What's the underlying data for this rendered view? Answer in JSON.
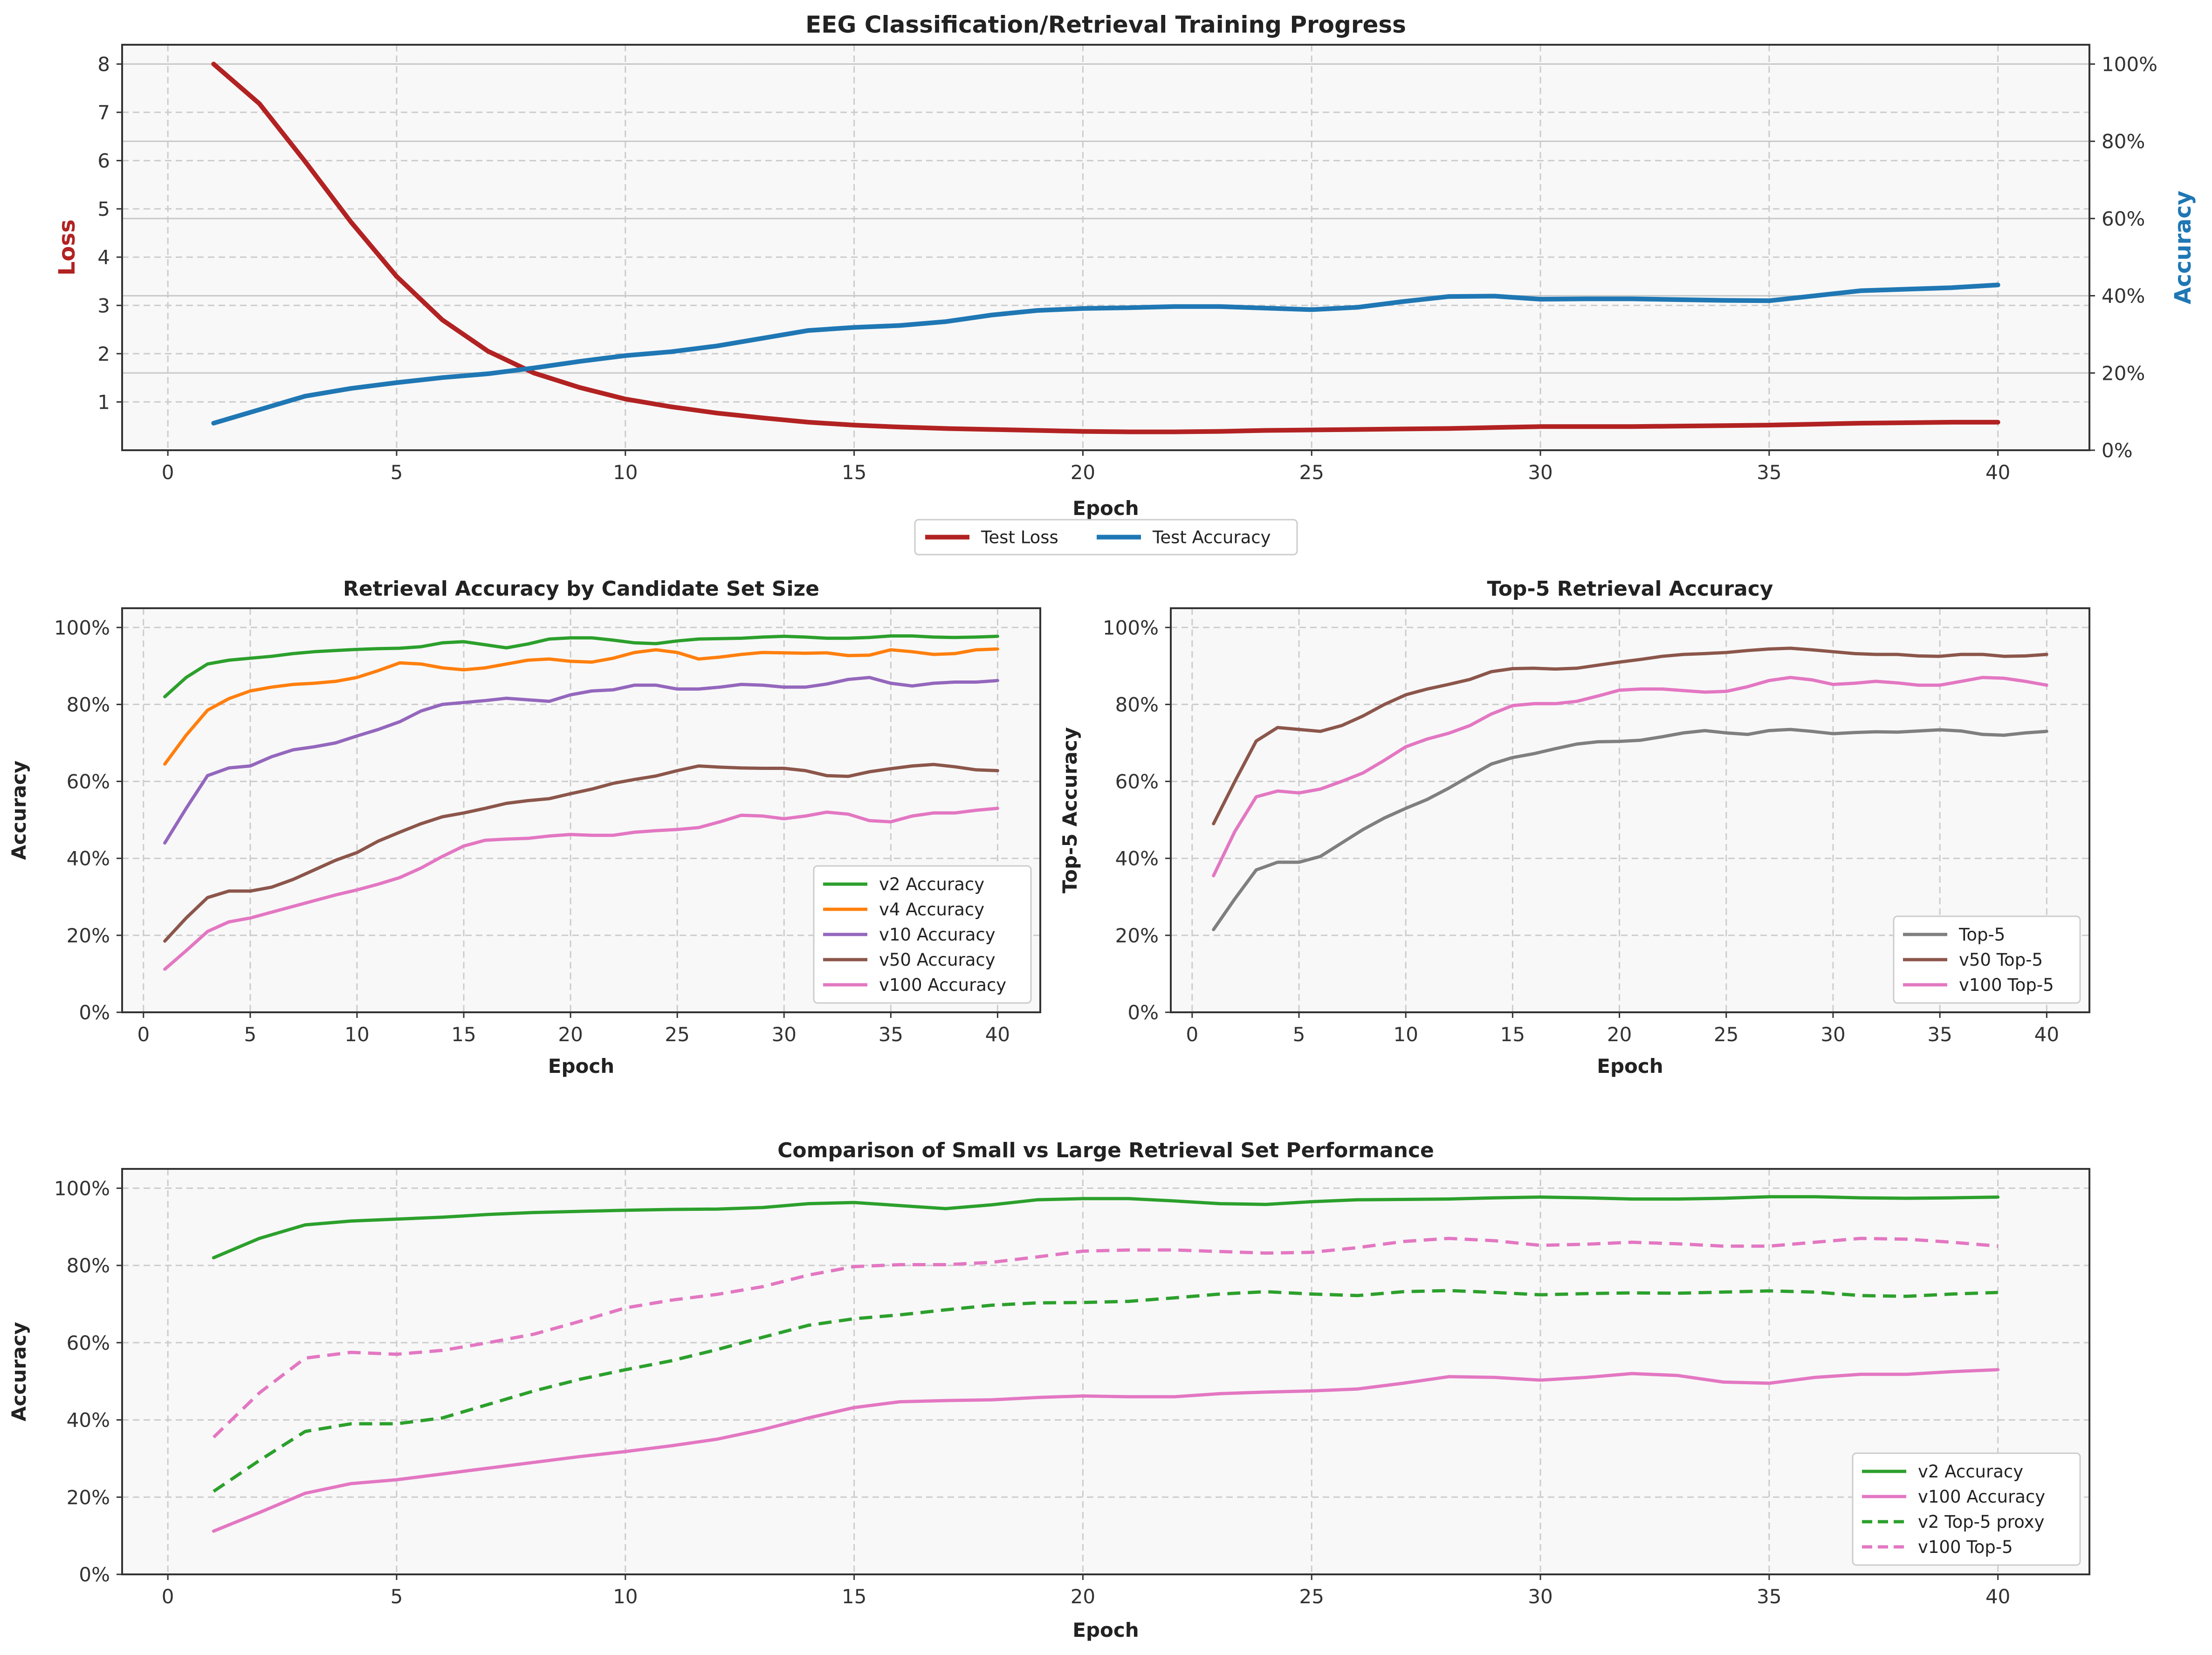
{
  "figure": {
    "title": "EEG Classification/Retrieval Training Progress"
  },
  "chart_data": [
    {
      "id": "top",
      "type": "line",
      "title": "EEG Classification/Retrieval Training Progress",
      "xlabel": "Epoch",
      "ylabel": "Loss",
      "y2label": "Accuracy",
      "xlim": [
        -1,
        42
      ],
      "ylim": [
        0,
        8.4
      ],
      "y2lim": [
        0,
        1.05
      ],
      "xticks": [
        0,
        5,
        10,
        15,
        20,
        25,
        30,
        35,
        40
      ],
      "yticks": [
        1,
        2,
        3,
        4,
        5,
        6,
        7,
        8
      ],
      "y2ticks": [
        0,
        0.2,
        0.4,
        0.6,
        0.8,
        1.0
      ],
      "y2ticklabels": [
        "0%",
        "20%",
        "40%",
        "60%",
        "80%",
        "100%"
      ],
      "grid": true,
      "legend_position": "below",
      "colors": {
        "loss": "#b22222",
        "accuracy": "#1f77b4"
      },
      "x": [
        1,
        2,
        3,
        4,
        5,
        6,
        7,
        8,
        9,
        10,
        11,
        12,
        13,
        14,
        15,
        16,
        17,
        18,
        19,
        20,
        21,
        22,
        23,
        24,
        25,
        26,
        27,
        28,
        29,
        30,
        31,
        32,
        33,
        34,
        35,
        36,
        37,
        38,
        39,
        40
      ],
      "series": [
        {
          "name": "Test Loss",
          "axis": "left",
          "color": "#b22222",
          "style": "solid",
          "values": [
            8.0,
            7.18,
            5.98,
            4.73,
            3.6,
            2.7,
            2.05,
            1.6,
            1.3,
            1.06,
            0.9,
            0.77,
            0.67,
            0.58,
            0.52,
            0.48,
            0.45,
            0.43,
            0.41,
            0.39,
            0.38,
            0.38,
            0.39,
            0.41,
            0.42,
            0.43,
            0.44,
            0.45,
            0.47,
            0.49,
            0.49,
            0.49,
            0.5,
            0.51,
            0.52,
            0.54,
            0.56,
            0.57,
            0.58,
            0.58
          ]
        },
        {
          "name": "Test Accuracy",
          "axis": "right",
          "color": "#1f77b4",
          "style": "solid",
          "values": [
            0.07,
            0.105,
            0.14,
            0.16,
            0.175,
            0.188,
            0.198,
            0.213,
            0.23,
            0.245,
            0.255,
            0.27,
            0.29,
            0.31,
            0.318,
            0.323,
            0.333,
            0.35,
            0.362,
            0.367,
            0.369,
            0.372,
            0.372,
            0.368,
            0.364,
            0.37,
            0.385,
            0.398,
            0.399,
            0.391,
            0.392,
            0.392,
            0.39,
            0.388,
            0.387,
            0.4,
            0.413,
            0.417,
            0.421,
            0.428
          ]
        }
      ]
    },
    {
      "id": "mid-left",
      "type": "line",
      "title": "Retrieval Accuracy by Candidate Set Size",
      "xlabel": "Epoch",
      "ylabel": "Accuracy",
      "xlim": [
        -1,
        42
      ],
      "ylim": [
        0,
        1.05
      ],
      "xticks": [
        0,
        5,
        10,
        15,
        20,
        25,
        30,
        35,
        40
      ],
      "yticks": [
        0,
        0.2,
        0.4,
        0.6,
        0.8,
        1.0
      ],
      "yticklabels": [
        "0%",
        "20%",
        "40%",
        "60%",
        "80%",
        "100%"
      ],
      "grid": true,
      "legend_position": "lower right",
      "x": [
        1,
        2,
        3,
        4,
        5,
        6,
        7,
        8,
        9,
        10,
        11,
        12,
        13,
        14,
        15,
        16,
        17,
        18,
        19,
        20,
        21,
        22,
        23,
        24,
        25,
        26,
        27,
        28,
        29,
        30,
        31,
        32,
        33,
        34,
        35,
        36,
        37,
        38,
        39,
        40
      ],
      "series": [
        {
          "name": "v2 Accuracy",
          "color": "#2ca02c",
          "style": "solid",
          "values": [
            0.82,
            0.87,
            0.905,
            0.915,
            0.92,
            0.925,
            0.932,
            0.937,
            0.94,
            0.943,
            0.945,
            0.946,
            0.95,
            0.96,
            0.963,
            0.955,
            0.947,
            0.957,
            0.97,
            0.973,
            0.973,
            0.967,
            0.96,
            0.958,
            0.965,
            0.97,
            0.971,
            0.972,
            0.975,
            0.977,
            0.975,
            0.972,
            0.972,
            0.974,
            0.978,
            0.978,
            0.975,
            0.974,
            0.975,
            0.977
          ]
        },
        {
          "name": "v4 Accuracy",
          "color": "#ff7f0e",
          "style": "solid",
          "values": [
            0.645,
            0.72,
            0.785,
            0.815,
            0.835,
            0.845,
            0.852,
            0.855,
            0.86,
            0.87,
            0.888,
            0.908,
            0.905,
            0.895,
            0.89,
            0.895,
            0.905,
            0.915,
            0.918,
            0.912,
            0.91,
            0.92,
            0.935,
            0.942,
            0.935,
            0.918,
            0.923,
            0.93,
            0.935,
            0.934,
            0.933,
            0.934,
            0.927,
            0.928,
            0.942,
            0.937,
            0.93,
            0.932,
            0.942,
            0.944
          ]
        },
        {
          "name": "v10 Accuracy",
          "color": "#9467bd",
          "style": "solid",
          "values": [
            0.44,
            0.53,
            0.615,
            0.635,
            0.64,
            0.664,
            0.682,
            0.69,
            0.7,
            0.718,
            0.735,
            0.755,
            0.783,
            0.8,
            0.805,
            0.81,
            0.816,
            0.812,
            0.808,
            0.825,
            0.835,
            0.838,
            0.85,
            0.85,
            0.84,
            0.84,
            0.845,
            0.852,
            0.85,
            0.845,
            0.845,
            0.853,
            0.865,
            0.87,
            0.855,
            0.848,
            0.855,
            0.858,
            0.858,
            0.862
          ]
        },
        {
          "name": "v50 Accuracy",
          "color": "#8c564b",
          "style": "solid",
          "values": [
            0.185,
            0.245,
            0.298,
            0.315,
            0.315,
            0.325,
            0.345,
            0.37,
            0.395,
            0.415,
            0.445,
            0.468,
            0.49,
            0.508,
            0.518,
            0.53,
            0.543,
            0.55,
            0.555,
            0.568,
            0.58,
            0.595,
            0.605,
            0.614,
            0.628,
            0.64,
            0.637,
            0.635,
            0.634,
            0.634,
            0.628,
            0.615,
            0.613,
            0.625,
            0.633,
            0.64,
            0.644,
            0.638,
            0.63,
            0.628
          ]
        },
        {
          "name": "v100 Accuracy",
          "color": "#e377c2",
          "style": "solid",
          "values": [
            0.112,
            0.16,
            0.21,
            0.235,
            0.245,
            0.26,
            0.275,
            0.29,
            0.305,
            0.318,
            0.333,
            0.35,
            0.375,
            0.405,
            0.432,
            0.447,
            0.45,
            0.452,
            0.458,
            0.462,
            0.46,
            0.46,
            0.468,
            0.472,
            0.475,
            0.48,
            0.495,
            0.512,
            0.51,
            0.503,
            0.51,
            0.52,
            0.515,
            0.498,
            0.495,
            0.51,
            0.518,
            0.518,
            0.525,
            0.53
          ]
        }
      ]
    },
    {
      "id": "mid-right",
      "type": "line",
      "title": "Top-5 Retrieval Accuracy",
      "xlabel": "Epoch",
      "ylabel": "Top-5 Accuracy",
      "xlim": [
        -1,
        42
      ],
      "ylim": [
        0,
        1.05
      ],
      "xticks": [
        0,
        5,
        10,
        15,
        20,
        25,
        30,
        35,
        40
      ],
      "yticks": [
        0,
        0.2,
        0.4,
        0.6,
        0.8,
        1.0
      ],
      "yticklabels": [
        "0%",
        "20%",
        "40%",
        "60%",
        "80%",
        "100%"
      ],
      "grid": true,
      "legend_position": "lower right",
      "x": [
        1,
        2,
        3,
        4,
        5,
        6,
        7,
        8,
        9,
        10,
        11,
        12,
        13,
        14,
        15,
        16,
        17,
        18,
        19,
        20,
        21,
        22,
        23,
        24,
        25,
        26,
        27,
        28,
        29,
        30,
        31,
        32,
        33,
        34,
        35,
        36,
        37,
        38,
        39,
        40
      ],
      "series": [
        {
          "name": "Top-5",
          "color": "#7f7f7f",
          "style": "solid",
          "values": [
            0.215,
            0.295,
            0.37,
            0.39,
            0.39,
            0.405,
            0.44,
            0.475,
            0.505,
            0.53,
            0.553,
            0.582,
            0.614,
            0.645,
            0.662,
            0.672,
            0.685,
            0.697,
            0.703,
            0.704,
            0.707,
            0.716,
            0.726,
            0.732,
            0.726,
            0.722,
            0.732,
            0.735,
            0.73,
            0.724,
            0.727,
            0.729,
            0.728,
            0.731,
            0.734,
            0.731,
            0.722,
            0.72,
            0.726,
            0.73
          ]
        },
        {
          "name": "v50 Top-5",
          "color": "#8c564b",
          "style": "solid",
          "values": [
            0.49,
            0.6,
            0.705,
            0.74,
            0.735,
            0.73,
            0.745,
            0.77,
            0.8,
            0.825,
            0.84,
            0.852,
            0.865,
            0.885,
            0.893,
            0.894,
            0.892,
            0.894,
            0.902,
            0.91,
            0.917,
            0.925,
            0.93,
            0.932,
            0.935,
            0.94,
            0.944,
            0.946,
            0.942,
            0.937,
            0.932,
            0.93,
            0.93,
            0.926,
            0.925,
            0.93,
            0.93,
            0.925,
            0.926,
            0.93
          ]
        },
        {
          "name": "v100 Top-5",
          "color": "#e377c2",
          "style": "solid",
          "values": [
            0.355,
            0.47,
            0.56,
            0.575,
            0.57,
            0.58,
            0.6,
            0.622,
            0.655,
            0.69,
            0.71,
            0.725,
            0.745,
            0.775,
            0.797,
            0.802,
            0.802,
            0.808,
            0.822,
            0.837,
            0.84,
            0.84,
            0.836,
            0.832,
            0.834,
            0.846,
            0.862,
            0.87,
            0.864,
            0.852,
            0.855,
            0.86,
            0.856,
            0.85,
            0.85,
            0.86,
            0.87,
            0.868,
            0.86,
            0.85
          ]
        }
      ]
    },
    {
      "id": "bottom",
      "type": "line",
      "title": "Comparison of Small vs Large Retrieval Set Performance",
      "xlabel": "Epoch",
      "ylabel": "Accuracy",
      "xlim": [
        -1,
        42
      ],
      "ylim": [
        0,
        1.05
      ],
      "xticks": [
        0,
        5,
        10,
        15,
        20,
        25,
        30,
        35,
        40
      ],
      "yticks": [
        0,
        0.2,
        0.4,
        0.6,
        0.8,
        1.0
      ],
      "yticklabels": [
        "0%",
        "20%",
        "40%",
        "60%",
        "80%",
        "100%"
      ],
      "grid": true,
      "legend_position": "lower right",
      "x": [
        1,
        2,
        3,
        4,
        5,
        6,
        7,
        8,
        9,
        10,
        11,
        12,
        13,
        14,
        15,
        16,
        17,
        18,
        19,
        20,
        21,
        22,
        23,
        24,
        25,
        26,
        27,
        28,
        29,
        30,
        31,
        32,
        33,
        34,
        35,
        36,
        37,
        38,
        39,
        40
      ],
      "series": [
        {
          "name": "v2 Accuracy",
          "color": "#2ca02c",
          "style": "solid",
          "values": [
            0.82,
            0.87,
            0.905,
            0.915,
            0.92,
            0.925,
            0.932,
            0.937,
            0.94,
            0.943,
            0.945,
            0.946,
            0.95,
            0.96,
            0.963,
            0.955,
            0.947,
            0.957,
            0.97,
            0.973,
            0.973,
            0.967,
            0.96,
            0.958,
            0.965,
            0.97,
            0.971,
            0.972,
            0.975,
            0.977,
            0.975,
            0.972,
            0.972,
            0.974,
            0.978,
            0.978,
            0.975,
            0.974,
            0.975,
            0.977
          ]
        },
        {
          "name": "v100 Accuracy",
          "color": "#e377c2",
          "style": "solid",
          "values": [
            0.112,
            0.16,
            0.21,
            0.235,
            0.245,
            0.26,
            0.275,
            0.29,
            0.305,
            0.318,
            0.333,
            0.35,
            0.375,
            0.405,
            0.432,
            0.447,
            0.45,
            0.452,
            0.458,
            0.462,
            0.46,
            0.46,
            0.468,
            0.472,
            0.475,
            0.48,
            0.495,
            0.512,
            0.51,
            0.503,
            0.51,
            0.52,
            0.515,
            0.498,
            0.495,
            0.51,
            0.518,
            0.518,
            0.525,
            0.53
          ]
        },
        {
          "name": "v2 Top-5 proxy",
          "color": "#2ca02c",
          "style": "dashed",
          "values": [
            0.215,
            0.295,
            0.37,
            0.39,
            0.39,
            0.405,
            0.44,
            0.475,
            0.505,
            0.53,
            0.553,
            0.582,
            0.614,
            0.645,
            0.662,
            0.672,
            0.685,
            0.697,
            0.703,
            0.704,
            0.707,
            0.716,
            0.726,
            0.732,
            0.726,
            0.722,
            0.732,
            0.735,
            0.73,
            0.724,
            0.727,
            0.729,
            0.728,
            0.731,
            0.734,
            0.731,
            0.722,
            0.72,
            0.726,
            0.73
          ]
        },
        {
          "name": "v100 Top-5",
          "color": "#e377c2",
          "style": "dashed",
          "values": [
            0.355,
            0.47,
            0.56,
            0.575,
            0.57,
            0.58,
            0.6,
            0.622,
            0.655,
            0.69,
            0.71,
            0.725,
            0.745,
            0.775,
            0.797,
            0.802,
            0.802,
            0.808,
            0.822,
            0.837,
            0.84,
            0.84,
            0.836,
            0.832,
            0.834,
            0.846,
            0.862,
            0.87,
            0.864,
            0.852,
            0.855,
            0.86,
            0.856,
            0.85,
            0.85,
            0.86,
            0.87,
            0.868,
            0.86,
            0.85
          ]
        }
      ]
    }
  ]
}
